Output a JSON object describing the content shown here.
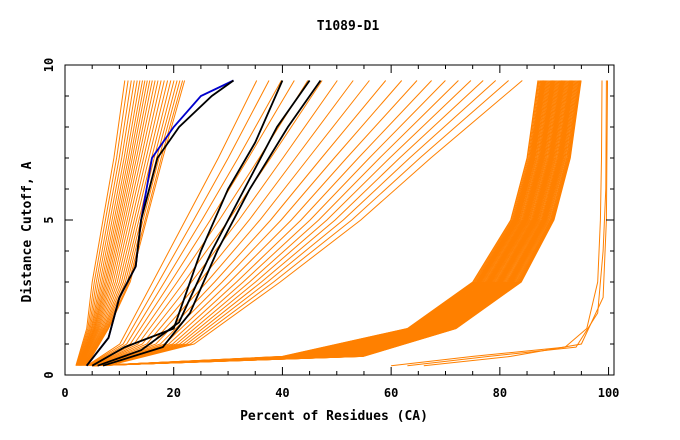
{
  "chart_data": {
    "type": "line",
    "title": "T1089-D1",
    "xlabel": "Percent of Residues (CA)",
    "ylabel": "Distance Cutoff, A",
    "xlim": [
      0,
      101
    ],
    "ylim": [
      0,
      10
    ],
    "x_ticks": [
      0,
      20,
      40,
      60,
      80,
      100
    ],
    "y_ticks": [
      0,
      5,
      10
    ],
    "grid": false,
    "legend": "none",
    "colors": {
      "models": "#ff8000",
      "highlight_black": "#000000",
      "highlight_blue": "#0000cc"
    },
    "bundles": [
      {
        "from": [
          [
            2,
            0.3
          ],
          [
            4,
            1.5
          ],
          [
            5,
            3
          ],
          [
            7,
            5
          ],
          [
            9,
            7
          ],
          [
            11,
            9.5
          ]
        ],
        "to": [
          [
            4,
            0.3
          ],
          [
            8,
            1.5
          ],
          [
            12,
            3
          ],
          [
            15,
            5
          ],
          [
            18,
            7
          ],
          [
            22,
            9.5
          ]
        ],
        "count": 22
      },
      {
        "from": [
          [
            4,
            0.3
          ],
          [
            10,
            1
          ],
          [
            16,
            3
          ],
          [
            22,
            5
          ],
          [
            28,
            7
          ],
          [
            35,
            9.5
          ]
        ],
        "to": [
          [
            8,
            0.3
          ],
          [
            24,
            1
          ],
          [
            40,
            3
          ],
          [
            55,
            5
          ],
          [
            68,
            7
          ],
          [
            85,
            9.5
          ]
        ],
        "count": 20
      },
      {
        "from": [
          [
            5,
            0.3
          ],
          [
            40,
            0.6
          ],
          [
            63,
            1.5
          ],
          [
            75,
            3
          ],
          [
            82,
            5
          ],
          [
            85,
            7
          ],
          [
            87,
            9.5
          ]
        ],
        "to": [
          [
            5,
            0.3
          ],
          [
            55,
            0.6
          ],
          [
            72,
            1.5
          ],
          [
            84,
            3
          ],
          [
            90,
            5
          ],
          [
            93,
            7
          ],
          [
            95,
            9.5
          ]
        ],
        "count": 70
      }
    ],
    "series": [
      {
        "values": [
          [
            60,
            0.3
          ],
          [
            75,
            0.6
          ],
          [
            92,
            0.9
          ],
          [
            96,
            1.5
          ],
          [
            98,
            3
          ],
          [
            98.5,
            5
          ],
          [
            98.7,
            7
          ],
          [
            98.8,
            9.5
          ]
        ]
      },
      {
        "values": [
          [
            63,
            0.3
          ],
          [
            78,
            0.6
          ],
          [
            94,
            0.9
          ],
          [
            98,
            2
          ],
          [
            99,
            4
          ],
          [
            99.5,
            6
          ],
          [
            99.6,
            9.5
          ]
        ]
      },
      {
        "values": [
          [
            66,
            0.3
          ],
          [
            82,
            0.6
          ],
          [
            95,
            1
          ],
          [
            99,
            2.5
          ],
          [
            99.6,
            5
          ],
          [
            99.8,
            9.5
          ]
        ]
      },
      {
        "values": [
          [
            4,
            0.3
          ],
          [
            8,
            1.2
          ],
          [
            10,
            2.5
          ],
          [
            13,
            3.5
          ],
          [
            14,
            5
          ],
          [
            16,
            7
          ],
          [
            20,
            8
          ],
          [
            25,
            9
          ],
          [
            31,
            9.5
          ]
        ],
        "highlight": "blue"
      },
      {
        "values": [
          [
            4,
            0.3
          ],
          [
            8,
            1.2
          ],
          [
            10,
            2.5
          ],
          [
            13,
            3.5
          ],
          [
            14,
            5
          ],
          [
            17,
            7
          ],
          [
            21,
            8
          ],
          [
            27,
            9
          ],
          [
            31,
            9.5
          ]
        ],
        "highlight": "black"
      },
      {
        "values": [
          [
            5,
            0.3
          ],
          [
            11,
            0.9
          ],
          [
            20,
            1.5
          ],
          [
            25,
            4
          ],
          [
            30,
            6
          ],
          [
            35,
            7.5
          ],
          [
            40,
            9.5
          ]
        ],
        "highlight": "black"
      },
      {
        "values": [
          [
            6,
            0.3
          ],
          [
            14,
            0.8
          ],
          [
            21,
            1.7
          ],
          [
            27,
            4
          ],
          [
            33,
            6
          ],
          [
            39,
            8
          ],
          [
            45,
            9.5
          ]
        ],
        "highlight": "black"
      },
      {
        "values": [
          [
            7,
            0.3
          ],
          [
            18,
            0.9
          ],
          [
            23,
            2
          ],
          [
            28,
            4
          ],
          [
            34,
            6
          ],
          [
            41,
            8
          ],
          [
            47,
            9.5
          ]
        ],
        "highlight": "black"
      }
    ]
  }
}
